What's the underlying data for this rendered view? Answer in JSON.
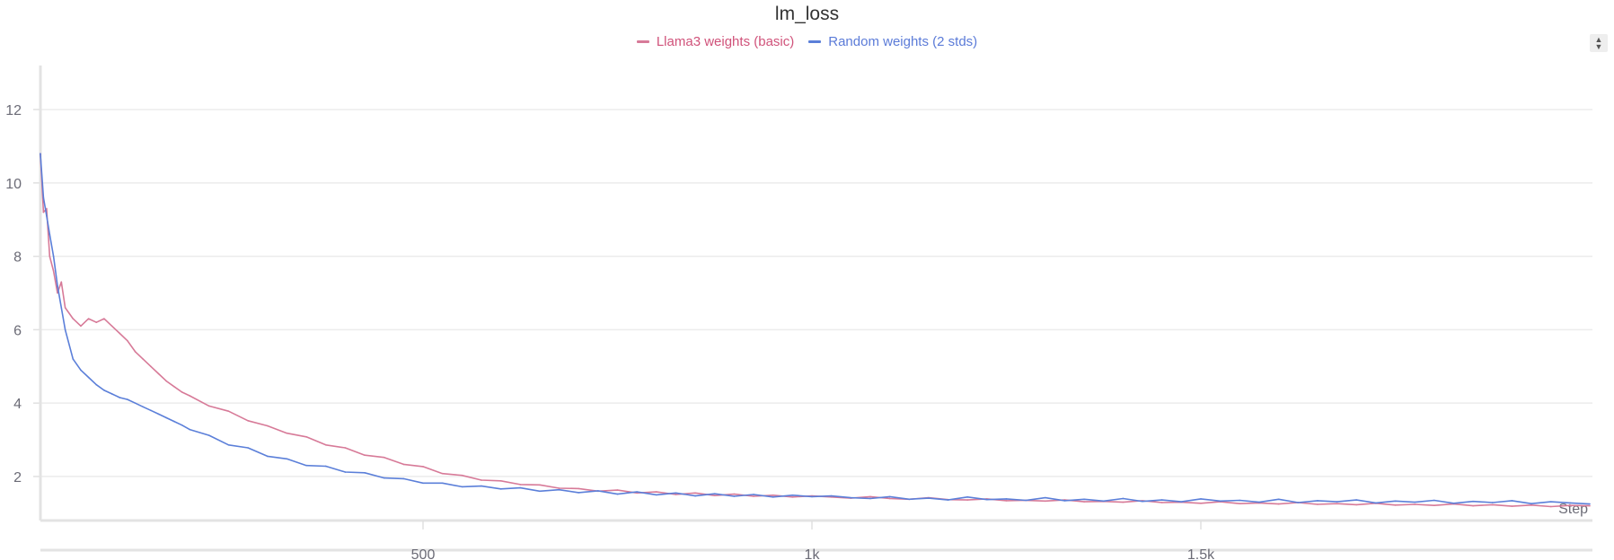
{
  "chart_data": {
    "type": "line",
    "title": "lm_loss",
    "xlabel": "Step",
    "ylabel": "",
    "xlim": [
      8,
      2003
    ],
    "ylim": [
      0.8,
      13.2
    ],
    "grid": true,
    "legend_position": "top-center",
    "x_ticks": [
      500,
      1000,
      1500
    ],
    "x_tick_labels": [
      "500",
      "1k",
      "1.5k"
    ],
    "y_ticks": [
      2,
      4,
      6,
      8,
      10,
      12
    ],
    "y_tick_labels": [
      "2",
      "4",
      "6",
      "8",
      "10",
      "12"
    ],
    "x": [
      8,
      12,
      16,
      20,
      25,
      30,
      35,
      40,
      50,
      60,
      70,
      80,
      90,
      100,
      110,
      120,
      130,
      140,
      150,
      160,
      170,
      180,
      190,
      200,
      225,
      250,
      275,
      300,
      325,
      350,
      375,
      400,
      425,
      450,
      475,
      500,
      525,
      550,
      575,
      600,
      625,
      650,
      675,
      700,
      725,
      750,
      775,
      800,
      825,
      850,
      875,
      900,
      925,
      950,
      975,
      1000,
      1025,
      1050,
      1075,
      1100,
      1125,
      1150,
      1175,
      1200,
      1225,
      1250,
      1275,
      1300,
      1325,
      1350,
      1375,
      1400,
      1425,
      1450,
      1475,
      1500,
      1525,
      1550,
      1575,
      1600,
      1625,
      1650,
      1675,
      1700,
      1725,
      1750,
      1775,
      1800,
      1825,
      1850,
      1875,
      1900,
      1925,
      1950,
      1975,
      2000
    ],
    "series": [
      {
        "name": "Llama3 weights (basic)",
        "color": "#d77a98",
        "values": [
          10.8,
          9.2,
          9.3,
          8.0,
          7.6,
          7.0,
          7.3,
          6.6,
          6.3,
          6.1,
          6.3,
          6.2,
          6.3,
          6.1,
          5.9,
          5.7,
          5.4,
          5.2,
          5.0,
          4.8,
          4.6,
          4.45,
          4.3,
          4.2,
          3.92,
          3.78,
          3.52,
          3.38,
          3.18,
          3.08,
          2.86,
          2.78,
          2.58,
          2.52,
          2.33,
          2.27,
          2.08,
          2.03,
          1.9,
          1.88,
          1.78,
          1.77,
          1.68,
          1.67,
          1.6,
          1.63,
          1.55,
          1.58,
          1.51,
          1.55,
          1.48,
          1.52,
          1.46,
          1.49,
          1.44,
          1.47,
          1.44,
          1.41,
          1.45,
          1.4,
          1.38,
          1.42,
          1.37,
          1.36,
          1.39,
          1.34,
          1.35,
          1.33,
          1.36,
          1.31,
          1.32,
          1.3,
          1.34,
          1.29,
          1.3,
          1.27,
          1.31,
          1.26,
          1.28,
          1.25,
          1.29,
          1.24,
          1.26,
          1.23,
          1.27,
          1.22,
          1.24,
          1.21,
          1.25,
          1.2,
          1.23,
          1.19,
          1.22,
          1.18,
          1.21,
          1.2
        ]
      },
      {
        "name": "Random weights (2 stds)",
        "color": "#5b7fd9",
        "values": [
          10.8,
          9.6,
          9.1,
          8.6,
          8.0,
          7.2,
          6.6,
          6.0,
          5.2,
          4.9,
          4.7,
          4.5,
          4.35,
          4.25,
          4.15,
          4.1,
          4.0,
          3.9,
          3.8,
          3.7,
          3.6,
          3.5,
          3.4,
          3.28,
          3.12,
          2.86,
          2.78,
          2.55,
          2.48,
          2.3,
          2.28,
          2.12,
          2.1,
          1.96,
          1.94,
          1.82,
          1.82,
          1.72,
          1.74,
          1.66,
          1.69,
          1.6,
          1.64,
          1.56,
          1.61,
          1.52,
          1.58,
          1.5,
          1.55,
          1.47,
          1.53,
          1.46,
          1.51,
          1.44,
          1.49,
          1.45,
          1.47,
          1.42,
          1.4,
          1.45,
          1.38,
          1.41,
          1.36,
          1.44,
          1.37,
          1.39,
          1.35,
          1.42,
          1.34,
          1.38,
          1.33,
          1.4,
          1.32,
          1.36,
          1.31,
          1.39,
          1.33,
          1.35,
          1.3,
          1.38,
          1.29,
          1.34,
          1.31,
          1.36,
          1.28,
          1.33,
          1.3,
          1.35,
          1.27,
          1.32,
          1.29,
          1.34,
          1.26,
          1.31,
          1.28,
          1.25
        ]
      }
    ]
  },
  "legend_colors": {
    "Llama3 weights (basic)": "#d0527a",
    "Random weights (2 stds)": "#5b7bd8"
  },
  "menu_icon": "sort-arrows-icon"
}
